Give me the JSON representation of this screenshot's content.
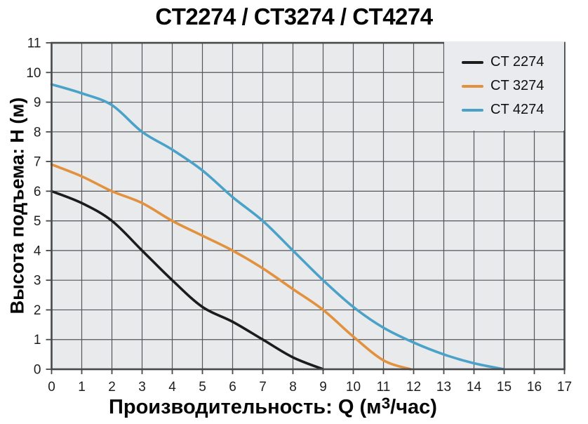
{
  "chart_data": {
    "type": "line",
    "title": "CT2274 / CT3274 / CT4274",
    "xlabel": "Производительность: Q (м3/час)",
    "xlabel_parts": {
      "prefix": "Производительность: Q (м",
      "sup": "3",
      "suffix": "/час)"
    },
    "ylabel": "Высота подъема: H (м)",
    "xlim": [
      0,
      17
    ],
    "ylim": [
      0,
      11
    ],
    "xticks": [
      0,
      1,
      2,
      3,
      4,
      5,
      6,
      7,
      8,
      9,
      10,
      11,
      12,
      13,
      14,
      15,
      16,
      17
    ],
    "yticks": [
      0,
      1,
      2,
      3,
      4,
      5,
      6,
      7,
      8,
      9,
      10,
      11
    ],
    "grid": true,
    "legend_position": "top-right",
    "plot_bg": "#e9eaec",
    "grid_color": "#55565a",
    "frame_color": "#47484a",
    "series": [
      {
        "name": "CT 2274",
        "color": "#1c1c1c",
        "points": [
          [
            0,
            6.0
          ],
          [
            1,
            5.6
          ],
          [
            2,
            5.0
          ],
          [
            3,
            4.0
          ],
          [
            4,
            3.0
          ],
          [
            5,
            2.1
          ],
          [
            6,
            1.6
          ],
          [
            7,
            1.0
          ],
          [
            8,
            0.4
          ],
          [
            9,
            0
          ]
        ]
      },
      {
        "name": "CT 3274",
        "color": "#e2913e",
        "points": [
          [
            0,
            6.9
          ],
          [
            1,
            6.5
          ],
          [
            2,
            6.0
          ],
          [
            3,
            5.6
          ],
          [
            4,
            5.0
          ],
          [
            5,
            4.5
          ],
          [
            6,
            4.0
          ],
          [
            7,
            3.4
          ],
          [
            8,
            2.7
          ],
          [
            9,
            2.0
          ],
          [
            10,
            1.1
          ],
          [
            11,
            0.3
          ],
          [
            11.9,
            0
          ]
        ]
      },
      {
        "name": "CT 4274",
        "color": "#4ba2c9",
        "points": [
          [
            0,
            9.6
          ],
          [
            1,
            9.3
          ],
          [
            2,
            8.9
          ],
          [
            3,
            8.0
          ],
          [
            4,
            7.4
          ],
          [
            5,
            6.7
          ],
          [
            6,
            5.8
          ],
          [
            7,
            5.0
          ],
          [
            8,
            4.0
          ],
          [
            9,
            3.0
          ],
          [
            10,
            2.1
          ],
          [
            11,
            1.4
          ],
          [
            12,
            0.9
          ],
          [
            13,
            0.5
          ],
          [
            14,
            0.2
          ],
          [
            15,
            0
          ]
        ]
      }
    ]
  }
}
